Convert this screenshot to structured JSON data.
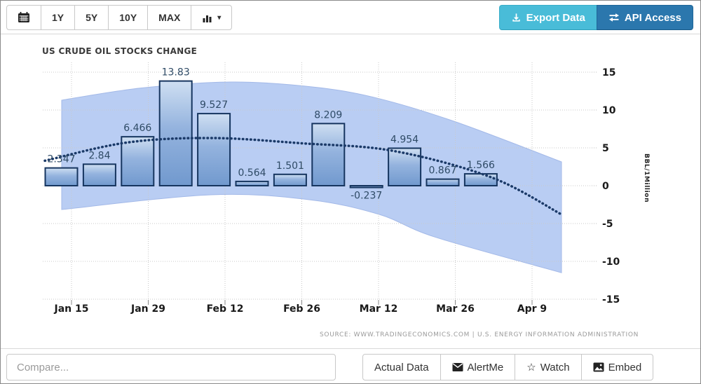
{
  "toolbar": {
    "range_buttons": [
      "1Y",
      "5Y",
      "10Y",
      "MAX"
    ],
    "export_label": "Export Data",
    "api_label": "API Access"
  },
  "chart_data": {
    "type": "bar",
    "title": "US CRUDE OIL STOCKS CHANGE",
    "unit_label": "BBL/1Million",
    "source": "SOURCE: WWW.TRADINGECONOMICS.COM | U.S. ENERGY INFORMATION ADMINISTRATION",
    "values": [
      2.347,
      2.84,
      6.466,
      13.83,
      9.527,
      0.564,
      1.501,
      8.209,
      -0.237,
      4.954,
      0.867,
      1.566
    ],
    "bar_labels": [
      "2.347",
      "2.84",
      "6.466",
      "13.83",
      "9.527",
      "0.564",
      "1.501",
      "8.209",
      "-0.237",
      "4.954",
      "0.867",
      "1.566"
    ],
    "x_tick_labels": [
      "Jan 15",
      "Jan 29",
      "Feb 12",
      "Feb 26",
      "Mar 12",
      "Mar 26",
      "Apr 9"
    ],
    "y_ticks": [
      15,
      10,
      5,
      0,
      -5,
      -10,
      -15
    ],
    "y_tick_labels": [
      "15",
      "10",
      "5",
      "0",
      "-5",
      "-10",
      "-15"
    ],
    "ylim": [
      -15,
      15
    ],
    "grid": "dotted",
    "legend": "none",
    "trend_line": [
      [
        63,
        3.3
      ],
      [
        180,
        5.7
      ],
      [
        300,
        6.3
      ],
      [
        430,
        5.6
      ],
      [
        560,
        4.6
      ],
      [
        700,
        1.1
      ],
      [
        800,
        -3.8
      ]
    ],
    "forecast_band": {
      "top": [
        [
          87,
          11.3
        ],
        [
          200,
          12.9
        ],
        [
          330,
          13.7
        ],
        [
          450,
          13.0
        ],
        [
          540,
          11.5
        ],
        [
          650,
          8.4
        ],
        [
          800,
          3.15
        ]
      ],
      "bottom": [
        [
          87,
          -3.15
        ],
        [
          300,
          -1.2
        ],
        [
          440,
          -1.85
        ],
        [
          540,
          -3.8
        ],
        [
          620,
          -6.8
        ],
        [
          800,
          -11.5
        ]
      ]
    },
    "colors": {
      "band_fill": "#b9cdf3",
      "band_edge": "#a3b9e8",
      "bar_top": "#cfdff2",
      "bar_mid": "#94b3de",
      "bar_bottom": "#7199ce",
      "bar_border": "#16355f",
      "trend": "#1b3a68",
      "grid": "#c9c9c9",
      "label": "#2f4b66",
      "axis_text": "#1a1a1a"
    }
  },
  "footer": {
    "compare_placeholder": "Compare...",
    "buttons": [
      "Actual Data",
      "AlertMe",
      "Watch",
      "Embed"
    ]
  }
}
